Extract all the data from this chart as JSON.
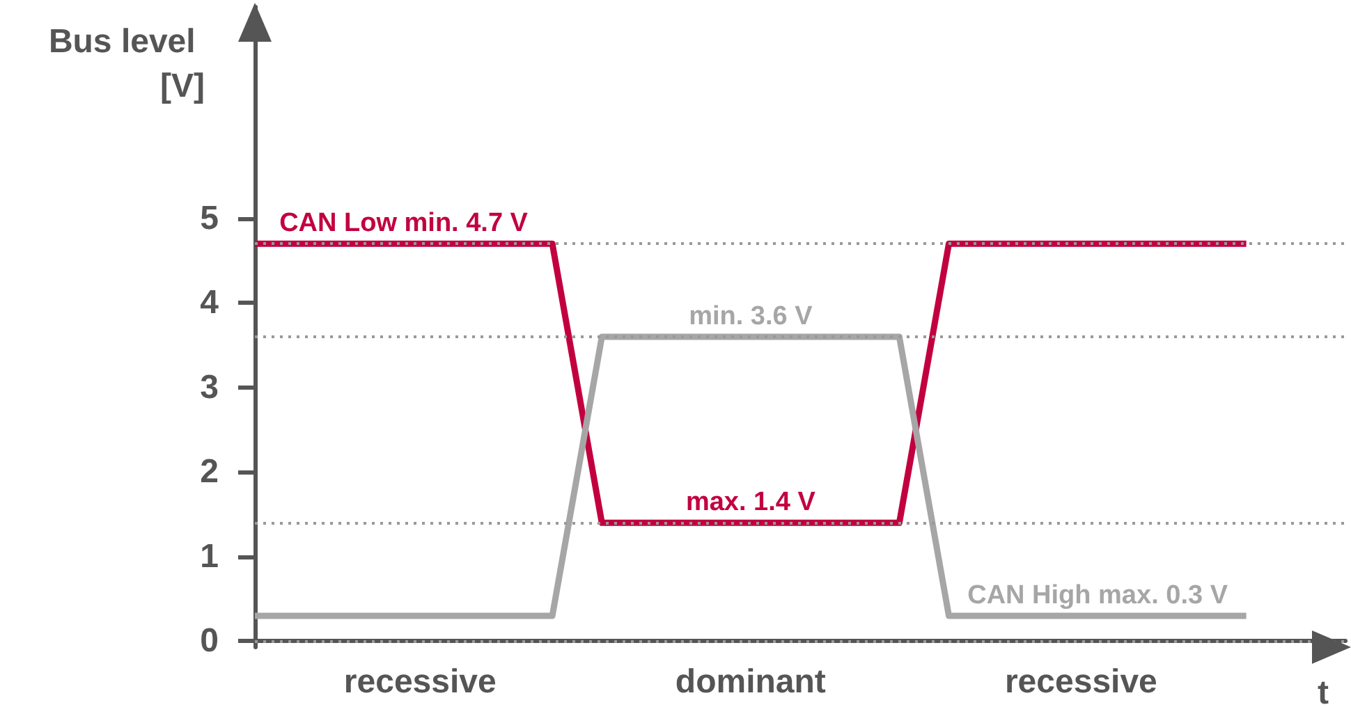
{
  "chart_data": {
    "type": "line",
    "ylabel": "Bus level [V]",
    "xlabel": "t",
    "categories": [
      null,
      null,
      null,
      null,
      null,
      null,
      null,
      null,
      null,
      null,
      null,
      null,
      null,
      null,
      null,
      null,
      null,
      null,
      null,
      null,
      null,
      null,
      null
    ],
    "series": [
      {
        "color": "#c20040",
        "values": [
          4.7,
          4.7,
          4.7,
          4.7,
          4.7,
          4.7,
          4.7,
          1.4,
          1.4,
          1.4,
          1.4,
          1.4,
          1.4,
          1.4,
          4.7,
          4.7,
          4.7,
          4.7,
          4.7,
          4.7,
          4.7,
          null,
          null
        ]
      },
      {
        "color": "#a6a6a6",
        "values": [
          0.3,
          0.3,
          0.3,
          0.3,
          0.3,
          0.3,
          0.3,
          3.6,
          3.6,
          3.6,
          3.6,
          3.6,
          3.6,
          3.6,
          0.3,
          0.3,
          0.3,
          0.3,
          0.3,
          0.3,
          0.3,
          null,
          null
        ]
      }
    ],
    "ylim": [
      -0.07,
      7.5
    ],
    "yticks": [
      0,
      1,
      2,
      3,
      4,
      5
    ],
    "tick_labels": "y",
    "grid": false,
    "marker": "none",
    "line_style": "solid",
    "ref_lines": [
      {
        "axis": "y",
        "value": 4.7,
        "label": null,
        "color": "#999999",
        "line_style": "dotted"
      },
      {
        "axis": "y",
        "value": 3.6,
        "label": null,
        "color": "#999999",
        "line_style": "dotted"
      },
      {
        "axis": "y",
        "value": 1.4,
        "label": null,
        "color": "#999999",
        "line_style": "dotted"
      },
      {
        "axis": "y",
        "value": 0,
        "label": null,
        "color": "#999999",
        "line_style": "dotted"
      }
    ],
    "annotations": [
      {
        "text": "CAN Low min. 4.7 V",
        "y": 4.7
      },
      {
        "text": "min. 3.6 V",
        "y": 3.6
      },
      {
        "text": "max. 1.4 V",
        "y": 1.4
      },
      {
        "text": "CAN High max. 0.3 V",
        "y": 0.3
      },
      "recessive",
      "dominant",
      "recessive"
    ]
  }
}
